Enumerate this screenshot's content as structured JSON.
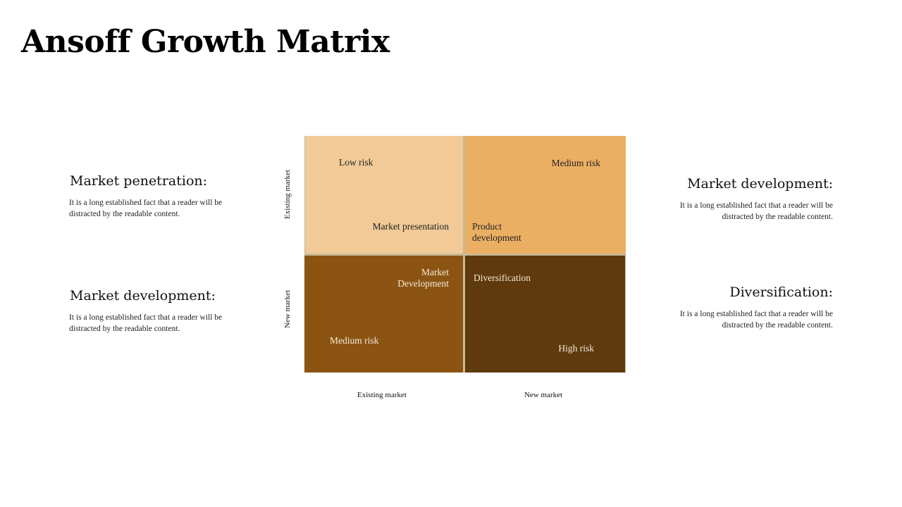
{
  "title": "Ansoff Growth Matrix",
  "left_blocks": [
    {
      "heading": "Market penetration:",
      "body": "It is a long established fact that a reader will be distracted by the readable content."
    },
    {
      "heading": "Market development:",
      "body": "It is a long established fact that a reader will be distracted by the readable content."
    }
  ],
  "right_blocks": [
    {
      "heading": "Market development:",
      "body": "It is a long established fact that a reader will be distracted by the readable content."
    },
    {
      "heading": "Diversification:",
      "body": "It is a long established fact that a reader will be distracted by the readable content."
    }
  ],
  "matrix": {
    "q1": {
      "risk": "Low risk",
      "name": "Market presentation",
      "color": "#f1ca97"
    },
    "q2": {
      "risk": "Medium risk",
      "name": "Product development",
      "color": "#ebaf63"
    },
    "q3": {
      "risk": "Medium risk",
      "name": "Market Development",
      "color": "#8b5412"
    },
    "q4": {
      "risk": "High risk",
      "name": "Diversification",
      "color": "#5e3a0e"
    }
  },
  "axes": {
    "y_top": "Existing market",
    "y_bottom": "New market",
    "x_left": "Existing market",
    "x_right": "New market"
  }
}
